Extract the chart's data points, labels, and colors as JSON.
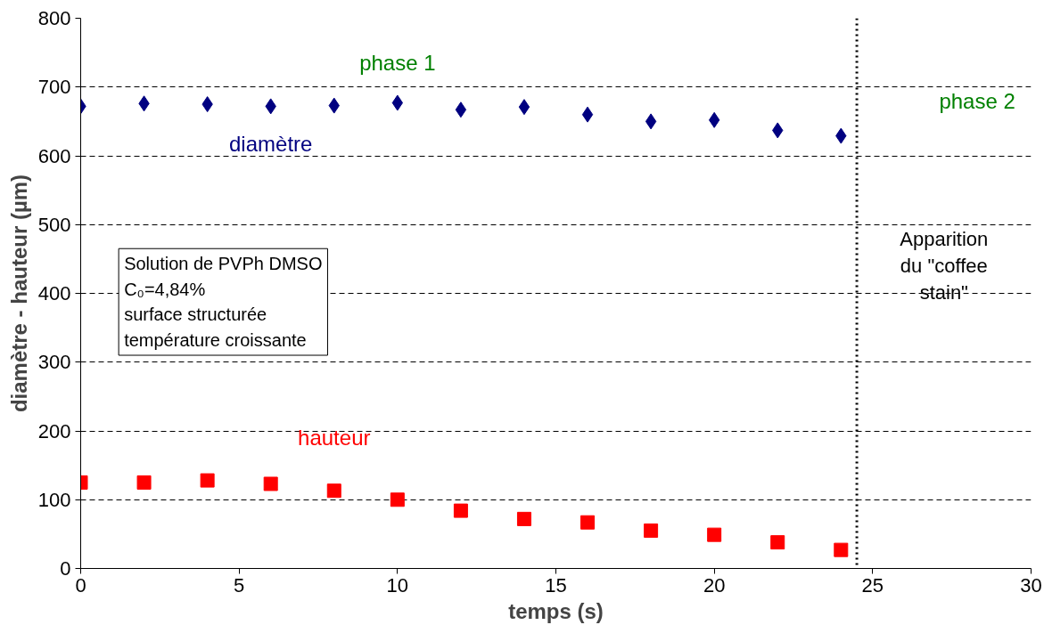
{
  "chart_data": {
    "type": "scatter",
    "xlabel": "temps (s)",
    "ylabel": "diamètre - hauteur (µm)",
    "x": [
      0,
      2,
      4,
      6,
      8,
      10,
      12,
      14,
      16,
      18,
      20,
      22,
      24
    ],
    "series": [
      {
        "name": "diamètre",
        "color": "#000080",
        "marker": "diamond",
        "values": [
          672,
          676,
          675,
          672,
          673,
          677,
          667,
          671,
          660,
          650,
          652,
          637,
          629
        ]
      },
      {
        "name": "hauteur",
        "color": "#ff0000",
        "marker": "square",
        "values": [
          125,
          125,
          128,
          123,
          113,
          100,
          84,
          72,
          67,
          55,
          49,
          38,
          27
        ]
      }
    ],
    "xlim": [
      0,
      30
    ],
    "xticks": [
      0,
      5,
      10,
      15,
      20,
      25,
      30
    ],
    "ylim": [
      0,
      800
    ],
    "yticks": [
      0,
      100,
      200,
      300,
      400,
      500,
      600,
      700,
      800
    ],
    "grid": "y",
    "ref_lines": [
      {
        "axis": "x",
        "value": 24.5,
        "label": "Apparition\ndu \"coffee\nstain\"",
        "line_style": "dotted",
        "color": "#000000"
      }
    ],
    "annotations": [
      "phase 1",
      "phase 2",
      "Solution de PVPh DMSO\nC₀=4,84%\nsurface structurée\ntempérature croissante"
    ]
  }
}
